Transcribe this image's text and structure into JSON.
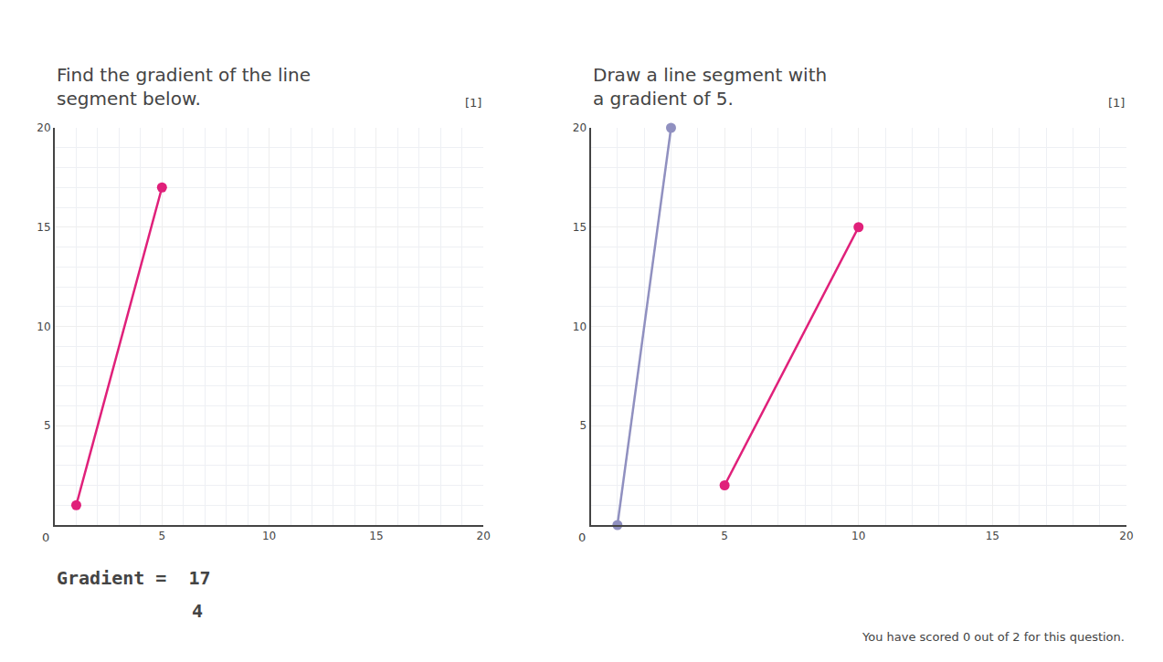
{
  "chart_data": [
    {
      "type": "line",
      "title": "Find the gradient of the line\nsegment below.",
      "annotations": [
        "0",
        "[1]",
        "Gradient =  17",
        "4"
      ],
      "series": [
        {
          "x": [
            1,
            5
          ],
          "values": [
            1,
            17
          ],
          "color": "#e0207a"
        }
      ],
      "xlim": [
        0,
        20
      ],
      "ylim": [
        0,
        20
      ],
      "xticks": [
        5,
        10,
        15,
        20
      ],
      "yticks": [
        5,
        10,
        15,
        20
      ],
      "grid": true,
      "marker": "circle",
      "line_style": "solid"
    },
    {
      "type": "line",
      "title": "Draw a line segment with\na gradient of 5.",
      "annotations": [
        "0",
        "[1]",
        "You have scored 0 out of 2 for this question."
      ],
      "series": [
        {
          "x": [
            1,
            3
          ],
          "values": [
            0,
            20
          ],
          "color": "#9090c0"
        },
        {
          "x": [
            5,
            10
          ],
          "values": [
            2,
            15
          ],
          "color": "#e0207a"
        }
      ],
      "xlim": [
        0,
        20
      ],
      "ylim": [
        0,
        20
      ],
      "xticks": [
        5,
        10,
        15,
        20
      ],
      "yticks": [
        5,
        10,
        15,
        20
      ],
      "grid": true,
      "marker": "circle",
      "line_style": "solid"
    }
  ]
}
